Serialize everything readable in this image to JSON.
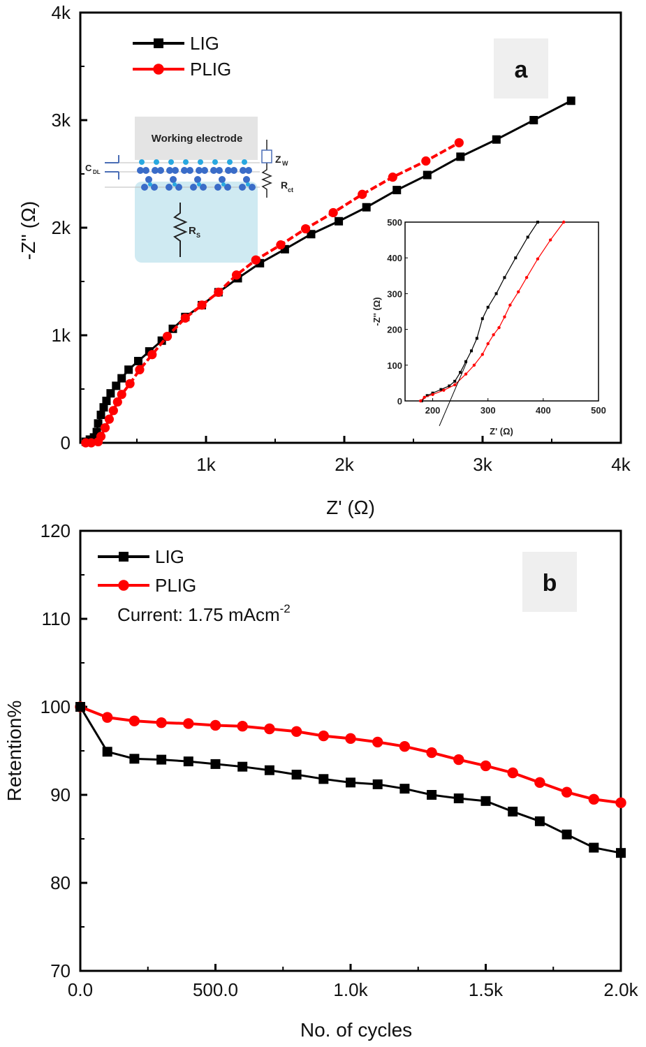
{
  "colors": {
    "LIG": "#000000",
    "PLIG": "#ff0000",
    "panel_box": "#efefef"
  },
  "chart_data": [
    {
      "panel": "a",
      "type": "line",
      "xlabel": "Z' (Ω)",
      "ylabel": "-Z'' (Ω)",
      "xlim": [
        0.09,
        4
      ],
      "ylim": [
        0,
        4
      ],
      "x_ticks": [
        1,
        2,
        3,
        4
      ],
      "x_tick_labels": [
        "1k",
        "2k",
        "3k",
        "4k"
      ],
      "y_ticks": [
        0,
        1,
        2,
        3,
        4
      ],
      "y_tick_labels": [
        "0",
        "1k",
        "2k",
        "3k",
        "4k"
      ],
      "units_note": "k = ×1000 Ω",
      "legend_position": "top-left",
      "series": [
        {
          "name": "LIG",
          "marker": "square",
          "x": [
            0.13,
            0.16,
            0.19,
            0.21,
            0.22,
            0.24,
            0.26,
            0.28,
            0.31,
            0.35,
            0.39,
            0.44,
            0.51,
            0.59,
            0.68,
            0.76,
            0.85,
            0.97,
            1.09,
            1.23,
            1.39,
            1.57,
            1.76,
            1.96,
            2.16,
            2.38,
            2.6,
            2.84,
            3.1,
            3.37,
            3.64
          ],
          "y": [
            0.01,
            0.03,
            0.05,
            0.1,
            0.18,
            0.26,
            0.33,
            0.39,
            0.46,
            0.53,
            0.6,
            0.68,
            0.76,
            0.85,
            0.95,
            1.06,
            1.17,
            1.28,
            1.4,
            1.53,
            1.67,
            1.8,
            1.94,
            2.06,
            2.19,
            2.35,
            2.49,
            2.66,
            2.82,
            3.0,
            3.18
          ]
        },
        {
          "name": "PLIG",
          "marker": "circle",
          "x": [
            0.13,
            0.17,
            0.22,
            0.24,
            0.27,
            0.3,
            0.33,
            0.36,
            0.39,
            0.45,
            0.52,
            0.61,
            0.72,
            0.85,
            0.97,
            1.09,
            1.22,
            1.36,
            1.54,
            1.72,
            1.92,
            2.13,
            2.35,
            2.59,
            2.83
          ],
          "y": [
            0.0,
            0.0,
            0.01,
            0.06,
            0.14,
            0.22,
            0.3,
            0.38,
            0.45,
            0.55,
            0.68,
            0.82,
            0.99,
            1.16,
            1.28,
            1.4,
            1.56,
            1.7,
            1.84,
            1.99,
            2.14,
            2.31,
            2.47,
            2.62,
            2.79
          ]
        }
      ],
      "inset": {
        "xlabel": "Z' (Ω)",
        "ylabel": "-Z'' (Ω)",
        "xlim": [
          150,
          500
        ],
        "ylim": [
          0,
          500
        ],
        "x_ticks": [
          200,
          300,
          400,
          500
        ],
        "y_ticks": [
          0,
          100,
          200,
          300,
          400,
          500
        ],
        "series": [
          {
            "name": "LIG",
            "x": [
              180,
              190,
              200,
              215,
              230,
              240,
              250,
              260,
              270,
              280,
              290,
              300,
              315,
              330,
              350,
              372,
              390
            ],
            "y": [
              0,
              15,
              22,
              32,
              42,
              55,
              80,
              110,
              140,
              175,
              230,
              262,
              300,
              345,
              400,
              458,
              500
            ]
          },
          {
            "name": "PLIG",
            "x": [
              178,
              185,
              200,
              220,
              240,
              260,
              275,
              290,
              300,
              310,
              320,
              330,
              340,
              355,
              370,
              390,
              413,
              437
            ],
            "y": [
              0,
              10,
              18,
              30,
              45,
              75,
              100,
              130,
              160,
              185,
              205,
              235,
              268,
              305,
              345,
              397,
              450,
              500
            ]
          }
        ],
        "tangent_line": {
          "x": [
            212,
            262
          ],
          "y": [
            -70,
            110
          ]
        }
      },
      "circuit_diagram": {
        "working_electrode": "Working electrode",
        "cdl": "C",
        "cdl_sub": "DL",
        "zw": "Z",
        "zw_sub": "W",
        "rct": "R",
        "rct_sub": "ct",
        "rs": "R",
        "rs_sub": "S"
      }
    },
    {
      "panel": "b",
      "type": "line",
      "xlabel": "No. of cycles",
      "ylabel": "Retention%",
      "xlim": [
        0,
        2000
      ],
      "ylim": [
        70,
        120
      ],
      "x_ticks": [
        0,
        500,
        1000,
        1500,
        2000
      ],
      "x_tick_labels": [
        "0.0",
        "500.0",
        "1.0k",
        "1.5k",
        "2.0k"
      ],
      "y_ticks": [
        70,
        80,
        90,
        100,
        110,
        120
      ],
      "y_tick_labels": [
        "70",
        "80",
        "90",
        "100",
        "110",
        "120"
      ],
      "legend_position": "top-left",
      "annotation": "Current: 1.75 mAcm",
      "annotation_sup": "-2",
      "x": [
        0,
        100,
        200,
        300,
        400,
        500,
        600,
        700,
        800,
        900,
        1000,
        1100,
        1200,
        1300,
        1400,
        1500,
        1600,
        1700,
        1800,
        1900,
        2000
      ],
      "series": [
        {
          "name": "LIG",
          "marker": "square",
          "values": [
            100,
            94.9,
            94.1,
            94.0,
            93.8,
            93.5,
            93.2,
            92.8,
            92.3,
            91.8,
            91.4,
            91.2,
            90.7,
            90.0,
            89.6,
            89.3,
            88.1,
            87.0,
            85.5,
            84.0,
            83.4
          ]
        },
        {
          "name": "PLIG",
          "marker": "circle",
          "values": [
            100,
            98.8,
            98.4,
            98.2,
            98.1,
            97.9,
            97.8,
            97.5,
            97.2,
            96.7,
            96.4,
            96.0,
            95.5,
            94.8,
            94.0,
            93.3,
            92.5,
            91.4,
            90.3,
            89.5,
            89.1
          ]
        }
      ]
    }
  ]
}
